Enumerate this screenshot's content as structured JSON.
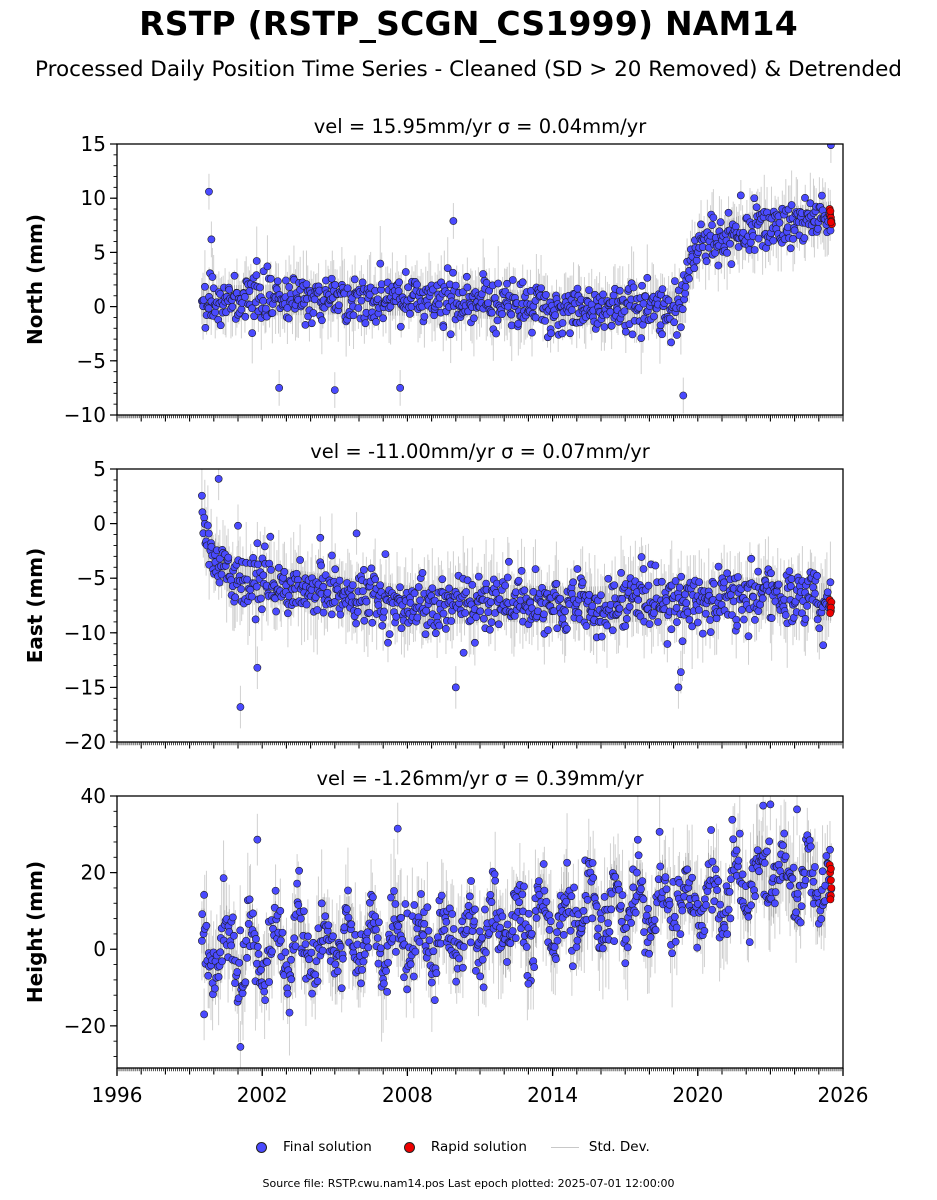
{
  "title": "RSTP (RSTP_SCGN_CS1999) NAM14",
  "subtitle": "Processed Daily Position Time Series - Cleaned (SD > 20 Removed) & Detrended",
  "footer": "Source file: RSTP.cwu.nam14.pos  Last epoch plotted: 2025-07-01 12:00:00",
  "colors": {
    "final": "#4a4aff",
    "rapid": "#ee0000",
    "stddev": "#c8c8c8",
    "marker_edge": "#1a1a1a"
  },
  "legend": {
    "final": "Final solution",
    "rapid": "Rapid solution",
    "stddev": "Std. Dev."
  },
  "chart_data": [
    {
      "type": "scatter",
      "panel_title": "vel = 15.95mm/yr   σ = 0.04mm/yr",
      "ylabel": "North (mm)",
      "xlim": [
        1996,
        2026
      ],
      "ylim": [
        -10,
        15
      ],
      "yticks": [
        -10,
        -5,
        0,
        5,
        10,
        15
      ],
      "ytick_labels": [
        "−10",
        "−5",
        "0",
        "5",
        "10",
        "15"
      ],
      "data_span": [
        1999.5,
        2025.5
      ],
      "trend": [
        [
          1999.5,
          0.5
        ],
        [
          2005.0,
          0.7
        ],
        [
          2010.0,
          0.5
        ],
        [
          2015.0,
          -0.3
        ],
        [
          2019.3,
          0.0
        ],
        [
          2019.6,
          3.5
        ],
        [
          2020.0,
          5.5
        ],
        [
          2022.0,
          7.2
        ],
        [
          2025.5,
          8.3
        ]
      ],
      "scatter_sd": 1.1,
      "outliers": [
        [
          1999.8,
          10.6
        ],
        [
          1999.9,
          6.2
        ],
        [
          2002.7,
          -7.5
        ],
        [
          2005.0,
          -7.7
        ],
        [
          2007.7,
          -7.5
        ],
        [
          2009.9,
          7.9
        ],
        [
          2019.4,
          -8.2
        ],
        [
          2025.5,
          14.9
        ]
      ],
      "rapid": [
        [
          2025.45,
          9.0
        ],
        [
          2025.47,
          8.5
        ],
        [
          2025.5,
          8.2
        ],
        [
          2025.52,
          7.9
        ],
        [
          2025.54,
          7.6
        ],
        [
          2025.5,
          7.8
        ],
        [
          2025.48,
          8.8
        ]
      ]
    },
    {
      "type": "scatter",
      "panel_title": "vel = -11.00mm/yr   σ = 0.07mm/yr",
      "ylabel": "East (mm)",
      "xlim": [
        1996,
        2026
      ],
      "ylim": [
        -20,
        5
      ],
      "yticks": [
        -20,
        -15,
        -10,
        -5,
        0,
        5
      ],
      "ytick_labels": [
        "−20",
        "−15",
        "−10",
        "−5",
        "0",
        "5"
      ],
      "data_span": [
        1999.5,
        2025.5
      ],
      "trend": [
        [
          1999.5,
          0.5
        ],
        [
          1999.9,
          -2.5
        ],
        [
          2000.5,
          -4.5
        ],
        [
          2003.0,
          -5.8
        ],
        [
          2006.0,
          -6.8
        ],
        [
          2009.0,
          -7.6
        ],
        [
          2012.0,
          -7.3
        ],
        [
          2015.0,
          -7.5
        ],
        [
          2019.0,
          -7.2
        ],
        [
          2022.0,
          -6.6
        ],
        [
          2025.5,
          -7.2
        ]
      ],
      "scatter_sd": 1.3,
      "outliers": [
        [
          2001.1,
          -16.8
        ],
        [
          2001.8,
          -13.2
        ],
        [
          2010.0,
          -15.0
        ],
        [
          2019.2,
          -15.0
        ],
        [
          2019.3,
          -13.6
        ],
        [
          2000.2,
          4.1
        ],
        [
          2005.9,
          -0.9
        ],
        [
          2001.0,
          -0.2
        ],
        [
          2001.8,
          -1.8
        ],
        [
          2004.4,
          -1.3
        ]
      ],
      "rapid": [
        [
          2025.45,
          -7.0
        ],
        [
          2025.48,
          -7.5
        ],
        [
          2025.5,
          -8.0
        ],
        [
          2025.52,
          -7.2
        ],
        [
          2025.5,
          -7.7
        ],
        [
          2025.47,
          -8.2
        ]
      ]
    },
    {
      "type": "scatter",
      "panel_title": "vel = -1.26mm/yr   σ = 0.39mm/yr",
      "ylabel": "Height (mm)",
      "xlim": [
        1996,
        2026
      ],
      "ylim": [
        -31,
        40
      ],
      "yticks": [
        -20,
        0,
        20,
        40
      ],
      "ytick_labels": [
        "−20",
        "0",
        "20",
        "40"
      ],
      "xticks": [
        1996,
        2002,
        2008,
        2014,
        2020,
        2026
      ],
      "xtick_labels": [
        "1996",
        "2002",
        "2008",
        "2014",
        "2020",
        "2026"
      ],
      "data_span": [
        1999.5,
        2025.5
      ],
      "trend": [
        [
          1999.5,
          -2.0
        ],
        [
          2005.0,
          1.0
        ],
        [
          2010.0,
          3.0
        ],
        [
          2015.0,
          9.0
        ],
        [
          2020.0,
          13.0
        ],
        [
          2023.0,
          19.0
        ],
        [
          2025.5,
          15.0
        ]
      ],
      "seasonal_amp": 7,
      "scatter_sd": 4.5,
      "outliers": [
        [
          2001.8,
          28.6
        ],
        [
          2007.6,
          31.5
        ],
        [
          2022.7,
          37.5
        ],
        [
          2023.0,
          37.8
        ],
        [
          2024.1,
          36.5
        ],
        [
          1999.6,
          -17.0
        ],
        [
          2001.1,
          -25.5
        ],
        [
          2013.0,
          -9.0
        ]
      ],
      "rapid": [
        [
          2025.45,
          22.0
        ],
        [
          2025.47,
          20.0
        ],
        [
          2025.5,
          18.0
        ],
        [
          2025.52,
          16.0
        ],
        [
          2025.5,
          14.0
        ],
        [
          2025.48,
          13.0
        ],
        [
          2025.5,
          21.0
        ]
      ]
    }
  ]
}
